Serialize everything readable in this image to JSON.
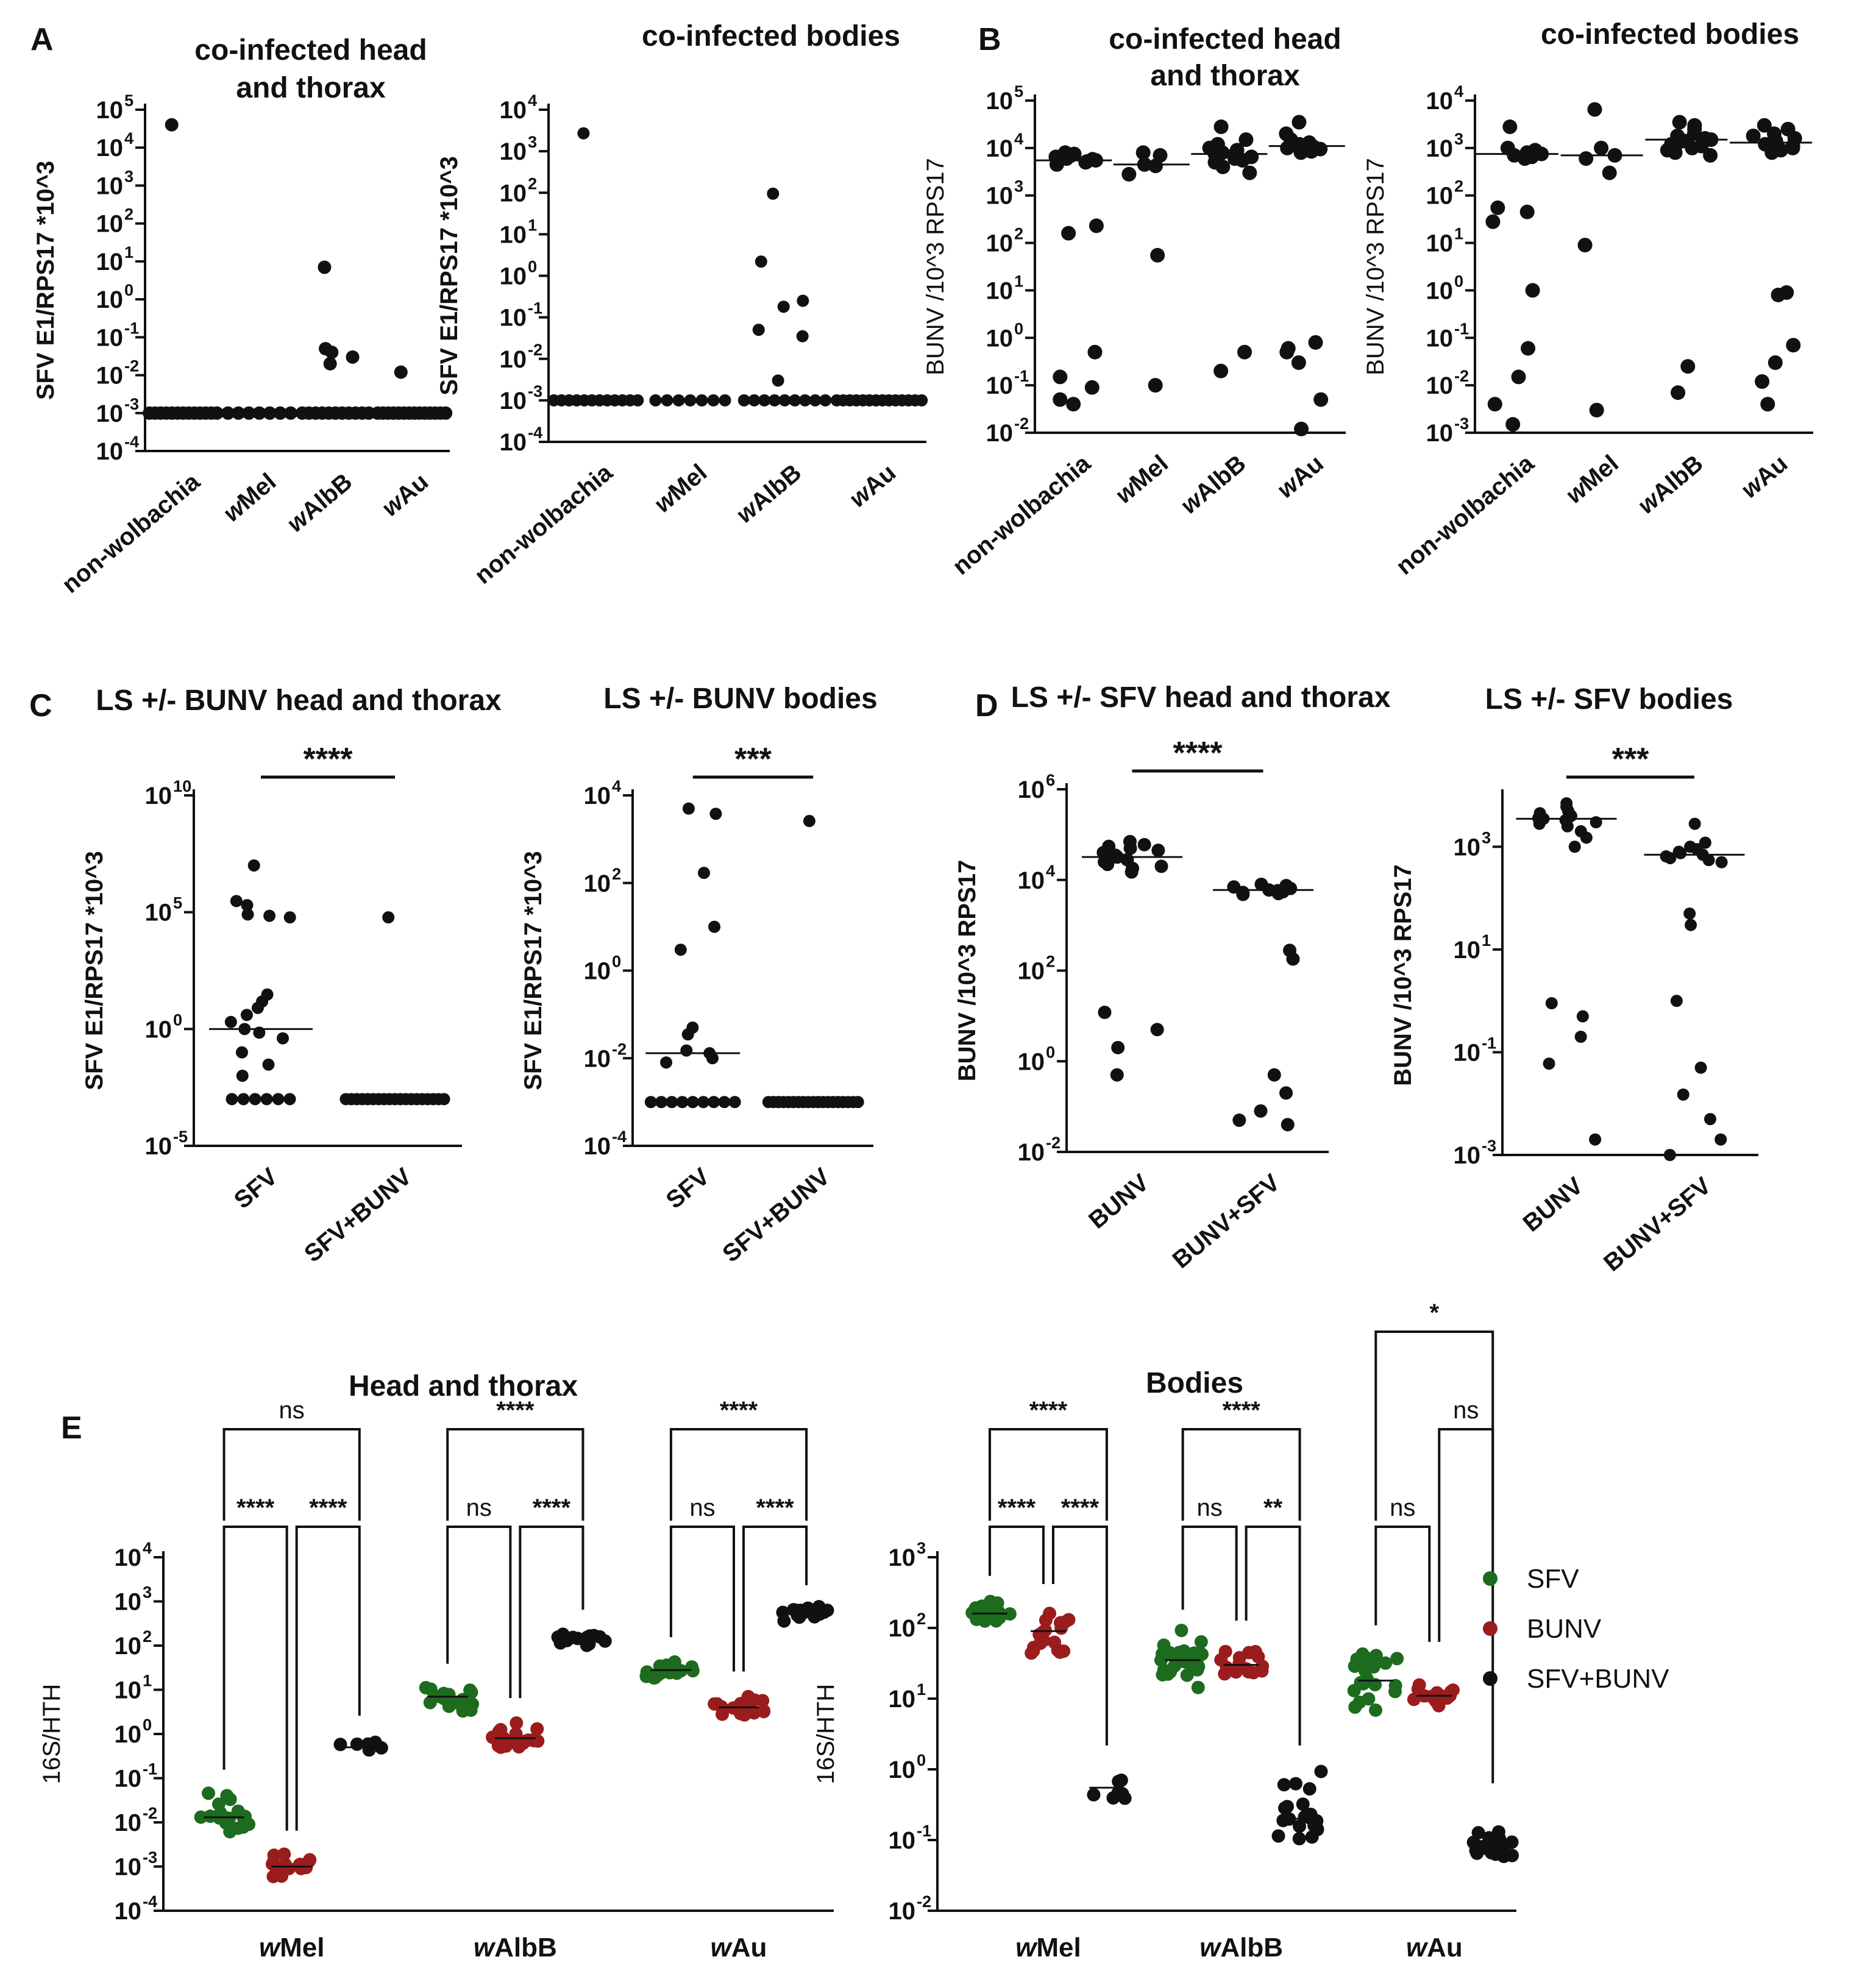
{
  "figure": {
    "panels": [
      {
        "id": "A",
        "label": "A"
      },
      {
        "id": "B",
        "label": "B"
      },
      {
        "id": "C",
        "label": "C"
      },
      {
        "id": "D",
        "label": "D"
      },
      {
        "id": "E",
        "label": "E"
      }
    ],
    "colors": {
      "SFV": "#1d6b1f",
      "BUNV": "#9b1c1c",
      "SFV+BUNV": "#111111",
      "axis": "#111111"
    }
  },
  "chart_data": [
    {
      "panel": "A",
      "type": "scatter",
      "scale": "log",
      "title": [
        "co-infected head",
        "and thorax"
      ],
      "ylabel": "SFV E1/RPS17 *10^3",
      "ylim_exp": [
        -4,
        5
      ],
      "ticks_exp": [
        -4,
        -3,
        -2,
        -1,
        0,
        1,
        2,
        3,
        4,
        5
      ],
      "categories": [
        {
          "label": "non-wolbachia",
          "italic_prefix": "",
          "rest": "non-wolbachia",
          "points": [
            40000,
            0.001,
            0.001,
            0.001,
            0.001,
            0.001,
            0.001,
            0.001,
            0.001,
            0.001,
            0.001,
            0.001,
            0.001,
            0.001
          ]
        },
        {
          "label": "wMel",
          "italic_prefix": "w",
          "rest": "Mel",
          "points": [
            0.001,
            0.001,
            0.001,
            0.001,
            0.001,
            0.001,
            0.001
          ]
        },
        {
          "label": "wAlbB",
          "italic_prefix": "w",
          "rest": "AlbB",
          "points": [
            7,
            0.05,
            0.04,
            0.03,
            0.02,
            0.001,
            0.001,
            0.001,
            0.001,
            0.001,
            0.001,
            0.001,
            0.001,
            0.001,
            0.001,
            0.001
          ]
        },
        {
          "label": "wAu",
          "italic_prefix": "w",
          "rest": "Au",
          "points": [
            0.012,
            0.001,
            0.001,
            0.001,
            0.001,
            0.001,
            0.001,
            0.001,
            0.001,
            0.001,
            0.001,
            0.001,
            0.001,
            0.001,
            0.001
          ]
        }
      ]
    },
    {
      "panel": "A",
      "type": "scatter",
      "scale": "log",
      "title": [
        "co-infected bodies"
      ],
      "ylabel": "SFV E1/RPS17 *10^3",
      "ylim_exp": [
        -4,
        4
      ],
      "ticks_exp": [
        -4,
        -3,
        -2,
        -1,
        0,
        1,
        2,
        3,
        4
      ],
      "categories": [
        {
          "label": "non-wolbachia",
          "italic_prefix": "",
          "rest": "non-wolbachia",
          "points": [
            2700,
            0.001,
            0.001,
            0.001,
            0.001,
            0.001,
            0.001,
            0.001,
            0.001,
            0.001,
            0.001,
            0.001,
            0.001
          ]
        },
        {
          "label": "wMel",
          "italic_prefix": "w",
          "rest": "Mel",
          "points": [
            0.001,
            0.001,
            0.001,
            0.001,
            0.001,
            0.001,
            0.001
          ]
        },
        {
          "label": "wAlbB",
          "italic_prefix": "w",
          "rest": "AlbB",
          "points": [
            95,
            2.2,
            0.25,
            0.18,
            0.05,
            0.035,
            0.003,
            0.001,
            0.001,
            0.001,
            0.001,
            0.001,
            0.001,
            0.001,
            0.001,
            0.001
          ]
        },
        {
          "label": "wAu",
          "italic_prefix": "w",
          "rest": "Au",
          "points": [
            0.001,
            0.001,
            0.001,
            0.001,
            0.001,
            0.001,
            0.001,
            0.001,
            0.001,
            0.001,
            0.001,
            0.001,
            0.001,
            0.001
          ]
        }
      ]
    },
    {
      "panel": "B",
      "type": "scatter",
      "scale": "log",
      "title": [
        "co-infected head",
        "and thorax"
      ],
      "ylabel": "BUNV /10^3 RPS17",
      "ylabel_bold": false,
      "ylim_exp": [
        -2,
        5
      ],
      "ticks_exp": [
        -2,
        -1,
        0,
        1,
        2,
        3,
        4,
        5
      ],
      "categories": [
        {
          "label": "non-wolbachia",
          "italic_prefix": "",
          "rest": "non-wolbachia",
          "median": 5500,
          "points": [
            8000,
            7500,
            7000,
            6500,
            6000,
            5800,
            5500,
            5200,
            5000,
            4500,
            230,
            160,
            0.5,
            0.15,
            0.09,
            0.05,
            0.04
          ]
        },
        {
          "label": "wMel",
          "italic_prefix": "w",
          "rest": "Mel",
          "median": 4500,
          "points": [
            8000,
            7000,
            4500,
            4200,
            2800,
            55,
            0.1
          ]
        },
        {
          "label": "wAlbB",
          "italic_prefix": "w",
          "rest": "AlbB",
          "median": 7500,
          "points": [
            28000,
            15000,
            12000,
            10000,
            9000,
            8000,
            7500,
            7000,
            6500,
            6000,
            5500,
            5000,
            4000,
            3000,
            0.5,
            0.2
          ]
        },
        {
          "label": "wAu",
          "italic_prefix": "w",
          "rest": "Au",
          "median": 11000,
          "points": [
            35000,
            20000,
            15000,
            13000,
            12000,
            11000,
            10500,
            10000,
            9500,
            9000,
            8500,
            8000,
            0.8,
            0.6,
            0.5,
            0.3,
            0.05,
            0.012
          ]
        }
      ]
    },
    {
      "panel": "B",
      "type": "scatter",
      "scale": "log",
      "title": [
        "co-infected bodies"
      ],
      "ylabel": "BUNV /10^3 RPS17",
      "ylabel_bold": false,
      "ylim_exp": [
        -3,
        4
      ],
      "ticks_exp": [
        -3,
        -2,
        -1,
        0,
        1,
        2,
        3,
        4
      ],
      "categories": [
        {
          "label": "non-wolbachia",
          "italic_prefix": "",
          "rest": "non-wolbachia",
          "median": 750,
          "points": [
            2800,
            1000,
            900,
            800,
            750,
            700,
            650,
            600,
            55,
            45,
            28,
            1,
            0.06,
            0.015,
            0.004,
            0.0015
          ]
        },
        {
          "label": "wMel",
          "italic_prefix": "w",
          "rest": "Mel",
          "median": 700,
          "points": [
            6500,
            1000,
            700,
            600,
            300,
            9,
            0.003
          ]
        },
        {
          "label": "wAlbB",
          "italic_prefix": "w",
          "rest": "AlbB",
          "median": 1500,
          "points": [
            3500,
            3000,
            2500,
            2000,
            1800,
            1600,
            1500,
            1400,
            1300,
            1200,
            1100,
            1000,
            900,
            800,
            700,
            0.025,
            0.007
          ]
        },
        {
          "label": "wAu",
          "italic_prefix": "w",
          "rest": "Au",
          "median": 1300,
          "points": [
            3000,
            2500,
            2000,
            1800,
            1600,
            1400,
            1300,
            1200,
            1100,
            1000,
            900,
            800,
            0.9,
            0.8,
            0.07,
            0.03,
            0.012,
            0.004
          ]
        }
      ]
    },
    {
      "panel": "C",
      "type": "scatter",
      "scale": "log",
      "title": [
        "LS +/- BUNV head and thorax"
      ],
      "ylabel": "SFV E1/RPS17 *10^3",
      "ylim_exp": [
        -5,
        10
      ],
      "ticks_exp": [
        -5,
        0,
        5,
        10
      ],
      "significance": {
        "label": "****",
        "between": [
          0,
          1
        ]
      },
      "categories": [
        {
          "label": "SFV",
          "italic_prefix": "",
          "rest": "SFV",
          "median": 1,
          "points": [
            10000000,
            300000,
            200000,
            80000,
            70000,
            60000,
            30,
            15,
            8,
            4,
            2,
            1,
            0.7,
            0.4,
            0.1,
            0.03,
            0.01,
            0.001,
            0.001,
            0.001,
            0.001,
            0.001,
            0.001
          ]
        },
        {
          "label": "SFV+BUNV",
          "italic_prefix": "",
          "rest": "SFV+BUNV",
          "points": [
            60000,
            0.001,
            0.001,
            0.001,
            0.001,
            0.001,
            0.001,
            0.001,
            0.001,
            0.001,
            0.001,
            0.001,
            0.001,
            0.001,
            0.001,
            0.001,
            0.001,
            0.001,
            0.001,
            0.001
          ]
        }
      ]
    },
    {
      "panel": "C",
      "type": "scatter",
      "scale": "log",
      "title": [
        "LS +/- BUNV bodies"
      ],
      "ylabel": "SFV E1/RPS17 *10^3",
      "ylim_exp": [
        -4,
        4
      ],
      "ticks_exp": [
        -4,
        -2,
        0,
        2,
        4
      ],
      "significance": {
        "label": "***",
        "between": [
          0,
          1
        ]
      },
      "categories": [
        {
          "label": "SFV",
          "italic_prefix": "",
          "rest": "SFV",
          "median": 0.013,
          "points": [
            5000,
            3800,
            170,
            10,
            3,
            0.05,
            0.035,
            0.015,
            0.013,
            0.01,
            0.008,
            0.001,
            0.001,
            0.001,
            0.001,
            0.001,
            0.001,
            0.001,
            0.001,
            0.001
          ]
        },
        {
          "label": "SFV+BUNV",
          "italic_prefix": "",
          "rest": "SFV+BUNV",
          "points": [
            2600,
            0.001,
            0.001,
            0.001,
            0.001,
            0.001,
            0.001,
            0.001,
            0.001,
            0.001,
            0.001,
            0.001,
            0.001,
            0.001,
            0.001,
            0.001,
            0.001,
            0.001,
            0.001,
            0.001
          ]
        }
      ]
    },
    {
      "panel": "D",
      "type": "scatter",
      "scale": "log",
      "title": [
        "LS +/- SFV head and thorax"
      ],
      "ylabel": "BUNV /10^3 RPS17",
      "ylim_exp": [
        -2,
        6
      ],
      "ticks_exp": [
        -2,
        0,
        2,
        4,
        6
      ],
      "significance": {
        "label": "****",
        "between": [
          0,
          1
        ]
      },
      "categories": [
        {
          "label": "BUNV",
          "italic_prefix": "",
          "rest": "BUNV",
          "median": 32000,
          "points": [
            70000,
            60000,
            55000,
            50000,
            45000,
            40000,
            35000,
            32000,
            30000,
            28000,
            25000,
            22000,
            20000,
            18000,
            15000,
            12,
            5,
            2,
            0.5
          ]
        },
        {
          "label": "BUNV+SFV",
          "italic_prefix": "",
          "rest": "BUNV+SFV",
          "median": 6000,
          "points": [
            8000,
            7500,
            7000,
            6500,
            6000,
            5800,
            5500,
            5300,
            5000,
            4800,
            280,
            180,
            0.5,
            0.2,
            0.08,
            0.05,
            0.04
          ]
        }
      ]
    },
    {
      "panel": "D",
      "type": "scatter",
      "scale": "log",
      "title": [
        "LS +/- SFV bodies"
      ],
      "ylabel": "BUNV /10^3 RPS17",
      "ylim_exp": [
        -3,
        4
      ],
      "ticks_exp": [
        -3,
        -1,
        1,
        3
      ],
      "significance": {
        "label": "***",
        "between": [
          0,
          1
        ]
      },
      "categories": [
        {
          "label": "BUNV",
          "italic_prefix": "",
          "rest": "BUNV",
          "median": 3500,
          "points": [
            7000,
            6000,
            5000,
            4500,
            4000,
            3800,
            3600,
            3500,
            3300,
            3000,
            2800,
            2500,
            2000,
            1500,
            1000,
            0.9,
            0.5,
            0.2,
            0.06,
            0.002
          ]
        },
        {
          "label": "BUNV+SFV",
          "italic_prefix": "",
          "rest": "BUNV+SFV",
          "median": 700,
          "points": [
            2800,
            1200,
            1000,
            900,
            800,
            750,
            700,
            650,
            600,
            550,
            500,
            50,
            30,
            1,
            0.05,
            0.015,
            0.005,
            0.002,
            0.001
          ]
        }
      ]
    },
    {
      "panel": "E",
      "type": "grouped-scatter",
      "scale": "log",
      "title": [
        "Head and thorax"
      ],
      "ylabel": "16S/HTH",
      "ylabel_bold": false,
      "ylim_exp": [
        -4,
        4
      ],
      "ticks_exp": [
        -4,
        -3,
        -2,
        -1,
        0,
        1,
        2,
        3,
        4
      ],
      "groups": [
        {
          "label": "wMel",
          "italic_prefix": "w",
          "rest": "Mel"
        },
        {
          "label": "wAlbB",
          "italic_prefix": "w",
          "rest": "AlbB"
        },
        {
          "label": "wAu",
          "italic_prefix": "w",
          "rest": "Au"
        }
      ],
      "series": [
        {
          "name": "SFV",
          "medians": [
            0.013,
            7,
            28
          ],
          "ranges": [
            [
              0.004,
              0.06
            ],
            [
              2.5,
              15
            ],
            [
              10,
              60
            ]
          ],
          "counts": [
            18,
            18,
            20
          ]
        },
        {
          "name": "BUNV",
          "medians": [
            0.001,
            0.8,
            4
          ],
          "ranges": [
            [
              0.0004,
              0.0025
            ],
            [
              0.3,
              2.5
            ],
            [
              1.5,
              10
            ]
          ],
          "counts": [
            16,
            20,
            20
          ]
        },
        {
          "name": "SFV+BUNV",
          "medians": [
            0.5,
            150,
            600
          ],
          "ranges": [
            [
              0.35,
              1.0
            ],
            [
              80,
              250
            ],
            [
              250,
              900
            ]
          ],
          "counts": [
            6,
            18,
            20
          ]
        }
      ],
      "comparisons": [
        {
          "group": 0,
          "outer": "ns",
          "left": "****",
          "right": "****"
        },
        {
          "group": 1,
          "outer": "****",
          "left": "ns",
          "right": "****"
        },
        {
          "group": 2,
          "outer": "****",
          "left": "ns",
          "right": "****"
        }
      ]
    },
    {
      "panel": "E",
      "type": "grouped-scatter",
      "scale": "log",
      "title": [
        "Bodies"
      ],
      "ylabel": "16S/HTH",
      "ylabel_bold": false,
      "ylim_exp": [
        -2,
        3
      ],
      "ticks_exp": [
        -2,
        -1,
        0,
        1,
        2,
        3
      ],
      "groups": [
        {
          "label": "wMel",
          "italic_prefix": "w",
          "rest": "Mel"
        },
        {
          "label": "wAlbB",
          "italic_prefix": "w",
          "rest": "AlbB"
        },
        {
          "label": "wAu",
          "italic_prefix": "w",
          "rest": "Au"
        }
      ],
      "series": [
        {
          "name": "SFV",
          "medians": [
            160,
            35,
            18
          ],
          "ranges": [
            [
              60,
              300
            ],
            [
              10,
              100
            ],
            [
              6,
              60
            ]
          ],
          "counts": [
            18,
            24,
            22
          ]
        },
        {
          "name": "BUNV",
          "medians": [
            90,
            30,
            11
          ],
          "ranges": [
            [
              18,
              230
            ],
            [
              12,
              70
            ],
            [
              6,
              35
            ]
          ],
          "counts": [
            18,
            18,
            18
          ]
        },
        {
          "name": "SFV+BUNV",
          "medians": [
            0.55,
            0.2,
            0.08
          ],
          "ranges": [
            [
              0.18,
              1.2
            ],
            [
              0.07,
              1.2
            ],
            [
              0.05,
              0.35
            ]
          ],
          "counts": [
            7,
            22,
            22
          ]
        }
      ],
      "comparisons": [
        {
          "group": 0,
          "outer": "****",
          "left": "****",
          "right": "****"
        },
        {
          "group": 1,
          "outer": "****",
          "left": "ns",
          "right": "**"
        },
        {
          "group": 2,
          "outer": "*",
          "middle": "ns",
          "left": "ns"
        }
      ],
      "legend": {
        "placement": "right",
        "entries": [
          "SFV",
          "BUNV",
          "SFV+BUNV"
        ]
      }
    }
  ]
}
